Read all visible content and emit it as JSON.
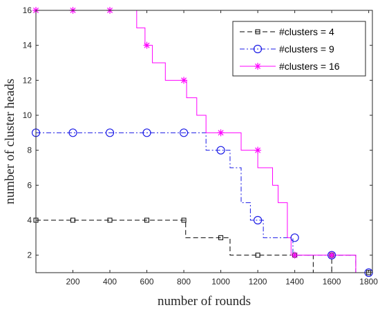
{
  "chart_data": {
    "type": "line",
    "title": "",
    "xlabel": "number of rounds",
    "ylabel": "number of cluster heads",
    "xlim": [
      0,
      1820
    ],
    "ylim": [
      1,
      16
    ],
    "xticks": [
      200,
      400,
      600,
      800,
      1000,
      1200,
      1400,
      1600,
      1800
    ],
    "yticks": [
      2,
      4,
      6,
      8,
      10,
      12,
      14,
      16
    ],
    "grid": false,
    "legend_position": "top-right",
    "step_plot": true,
    "series": [
      {
        "name": "#clusters = 4",
        "color": "#000000",
        "line_style": "dashed",
        "marker": "square",
        "steps": [
          [
            0,
            4
          ],
          [
            810,
            3
          ],
          [
            1050,
            2
          ],
          [
            1500,
            1
          ],
          [
            1600,
            2
          ],
          [
            1730,
            1
          ],
          [
            1820,
            1
          ]
        ],
        "markers": [
          [
            0,
            4
          ],
          [
            200,
            4
          ],
          [
            400,
            4
          ],
          [
            600,
            4
          ],
          [
            800,
            4
          ],
          [
            1000,
            3
          ],
          [
            1200,
            2
          ],
          [
            1400,
            2
          ],
          [
            1600,
            2
          ],
          [
            1800,
            1
          ]
        ]
      },
      {
        "name": "#clusters = 9",
        "color": "#1a1ae6",
        "line_style": "dashdot",
        "marker": "circle",
        "steps": [
          [
            0,
            9
          ],
          [
            920,
            8
          ],
          [
            1050,
            7
          ],
          [
            1110,
            5
          ],
          [
            1160,
            4
          ],
          [
            1230,
            3
          ],
          [
            1390,
            2
          ],
          [
            1730,
            1
          ],
          [
            1820,
            1
          ]
        ],
        "markers": [
          [
            0,
            9
          ],
          [
            200,
            9
          ],
          [
            400,
            9
          ],
          [
            600,
            9
          ],
          [
            800,
            9
          ],
          [
            1000,
            8
          ],
          [
            1200,
            4
          ],
          [
            1400,
            3
          ],
          [
            1600,
            2
          ],
          [
            1800,
            1
          ]
        ]
      },
      {
        "name": "#clusters = 16",
        "color": "#ff00ff",
        "line_style": "solid",
        "marker": "asterisk",
        "steps": [
          [
            0,
            16
          ],
          [
            545,
            15
          ],
          [
            590,
            14
          ],
          [
            630,
            13
          ],
          [
            700,
            12
          ],
          [
            815,
            11
          ],
          [
            870,
            10
          ],
          [
            920,
            9
          ],
          [
            1110,
            8
          ],
          [
            1200,
            7
          ],
          [
            1280,
            6
          ],
          [
            1310,
            5
          ],
          [
            1360,
            3
          ],
          [
            1380,
            2
          ],
          [
            1730,
            1
          ],
          [
            1820,
            1
          ]
        ],
        "markers": [
          [
            0,
            16
          ],
          [
            200,
            16
          ],
          [
            400,
            16
          ],
          [
            600,
            14
          ],
          [
            800,
            12
          ],
          [
            1000,
            9
          ],
          [
            1200,
            8
          ],
          [
            1400,
            2
          ],
          [
            1600,
            2
          ]
        ]
      }
    ]
  }
}
